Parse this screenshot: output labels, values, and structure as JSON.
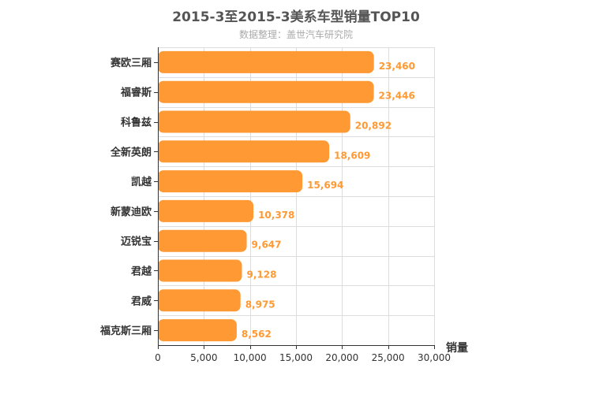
{
  "chart_data": {
    "type": "bar",
    "orientation": "horizontal",
    "title": "2015-3至2015-3美系车型销量TOP10",
    "subtitle": "数据整理：盖世汽车研究院",
    "categories": [
      "赛欧三厢",
      "福睿斯",
      "科鲁兹",
      "全新英朗",
      "凯越",
      "新蒙迪欧",
      "迈锐宝",
      "君越",
      "君威",
      "福克斯三厢"
    ],
    "values": [
      23460,
      23446,
      20892,
      18609,
      15694,
      10378,
      9647,
      9128,
      8975,
      8562
    ],
    "value_labels": [
      "23,460",
      "23,446",
      "20,892",
      "18,609",
      "15,694",
      "10,378",
      "9,647",
      "9,128",
      "8,975",
      "8,562"
    ],
    "xlabel": "销量",
    "ylabel": "",
    "xlim": [
      0,
      30000
    ],
    "x_ticks": [
      0,
      5000,
      10000,
      15000,
      20000,
      25000,
      30000
    ],
    "x_tick_labels": [
      "0",
      "5,000",
      "10,000",
      "15,000",
      "20,000",
      "25,000",
      "30,000"
    ],
    "grid": true,
    "colors": {
      "bar": "#ff9933",
      "value_label": "#ff9933",
      "grid": "#dddddd",
      "axis": "#333333"
    }
  }
}
